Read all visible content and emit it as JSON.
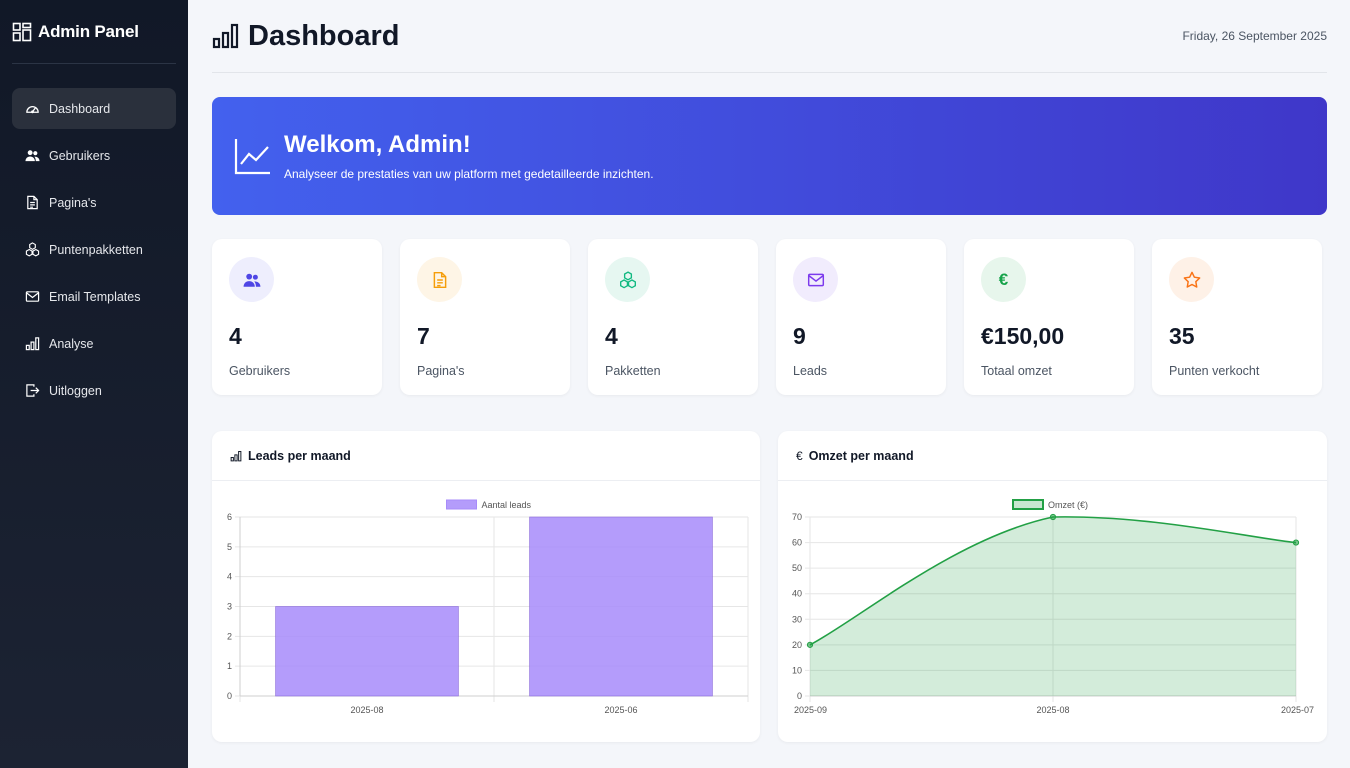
{
  "sidebar": {
    "brand": "Admin Panel",
    "items": [
      {
        "label": "Dashboard",
        "icon": "speedometer-icon",
        "active": true
      },
      {
        "label": "Gebruikers",
        "icon": "users-icon"
      },
      {
        "label": "Pagina's",
        "icon": "file-text-icon"
      },
      {
        "label": "Puntenpakketten",
        "icon": "boxes-icon"
      },
      {
        "label": "Email Templates",
        "icon": "envelope-icon"
      },
      {
        "label": "Analyse",
        "icon": "bar-chart-icon"
      },
      {
        "label": "Uitloggen",
        "icon": "logout-icon"
      }
    ]
  },
  "header": {
    "title": "Dashboard",
    "date": "Friday, 26 September 2025"
  },
  "welcome": {
    "title": "Welkom, Admin!",
    "subtitle": "Analyseer de prestaties van uw platform met gedetailleerde inzichten."
  },
  "stats": [
    {
      "value": "4",
      "label": "Gebruikers",
      "icon": "users-icon",
      "color": "#4f46e5",
      "bg": "#eeeefd"
    },
    {
      "value": "7",
      "label": "Pagina's",
      "icon": "file-text-icon",
      "color": "#f59e0b",
      "bg": "#fef5e6"
    },
    {
      "value": "4",
      "label": "Pakketten",
      "icon": "boxes-icon",
      "color": "#10b981",
      "bg": "#e6f7f1"
    },
    {
      "value": "9",
      "label": "Leads",
      "icon": "envelope-icon",
      "color": "#7c3aed",
      "bg": "#f1ecfd"
    },
    {
      "value": "€150,00",
      "label": "Totaal omzet",
      "icon": "euro-icon",
      "color": "#16a34a",
      "bg": "#e7f6ec"
    },
    {
      "value": "35",
      "label": "Punten verkocht",
      "icon": "star-icon",
      "color": "#f97316",
      "bg": "#fef1e7"
    }
  ],
  "charts": {
    "leads_title": "Leads per maand",
    "omzet_title": "Omzet per maand"
  },
  "chart_data": [
    {
      "type": "bar",
      "categories": [
        "2025-08",
        "2025-06"
      ],
      "series": [
        {
          "name": "Aantal leads",
          "values": [
            3,
            6
          ],
          "color": "#a78bfa"
        }
      ],
      "ylim": [
        0,
        6
      ],
      "yticks": [
        0,
        1,
        2,
        3,
        4,
        5,
        6
      ],
      "legend": "top-center",
      "grid": true
    },
    {
      "type": "area",
      "categories": [
        "2025-09",
        "2025-08",
        "2025-07"
      ],
      "series": [
        {
          "name": "Omzet (€)",
          "values": [
            20,
            70,
            60
          ],
          "color": "#22a045"
        }
      ],
      "ylim": [
        0,
        70
      ],
      "yticks": [
        0,
        10,
        20,
        30,
        40,
        50,
        60,
        70
      ],
      "legend": "top-center",
      "grid": true
    }
  ]
}
